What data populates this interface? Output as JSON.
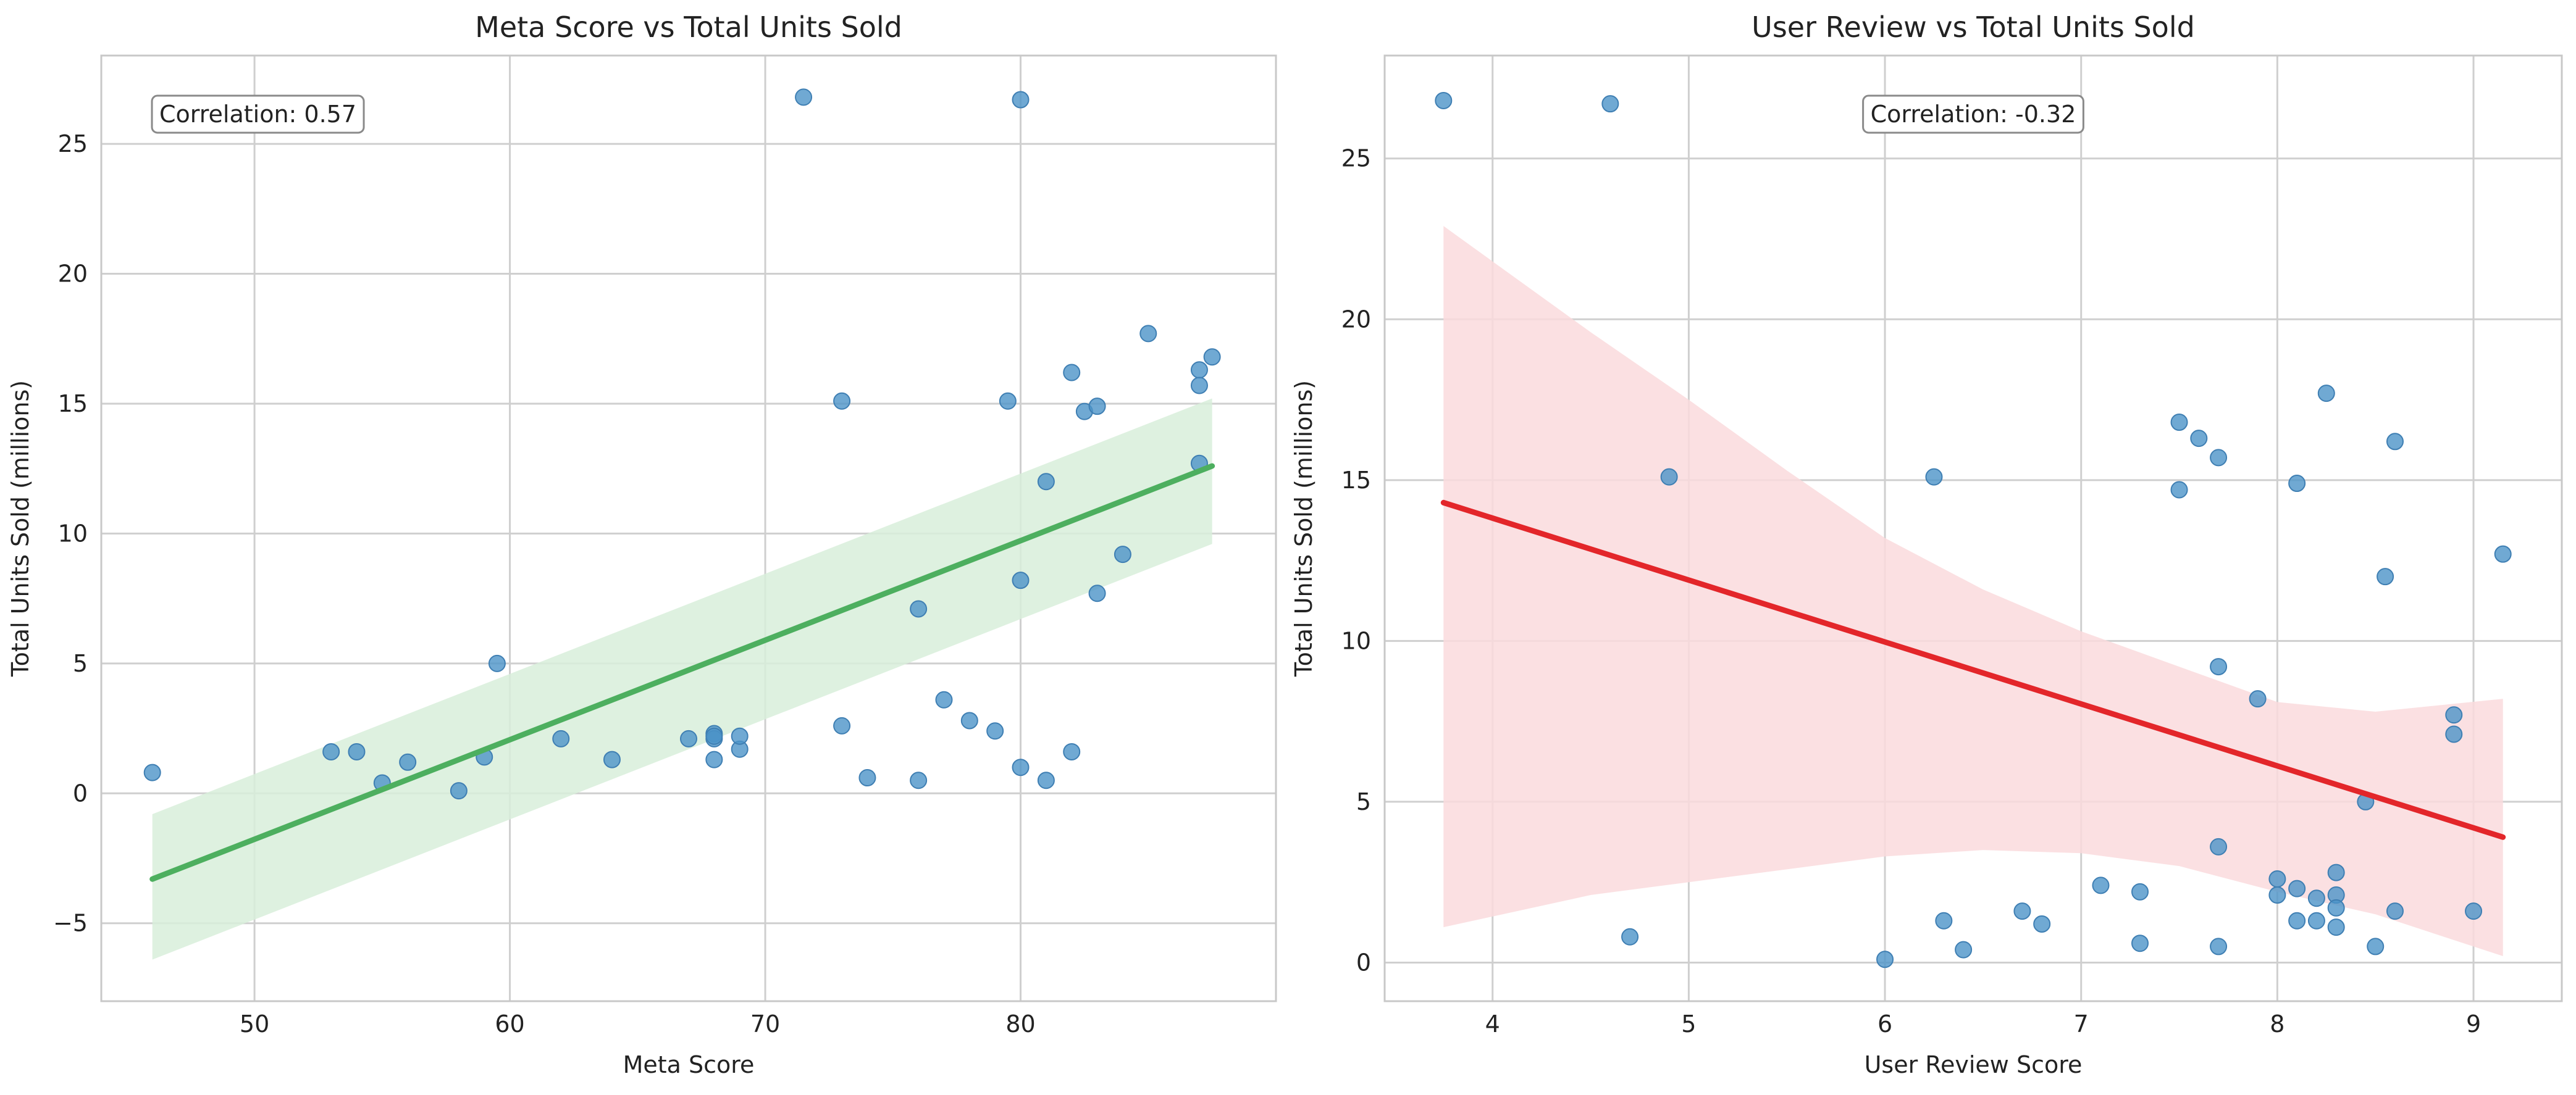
{
  "chart_data": [
    {
      "type": "scatter",
      "title": "Meta Score vs Total Units Sold",
      "xlabel": "Meta Score",
      "ylabel": "Total Units Sold (millions)",
      "xlim": [
        44,
        90
      ],
      "ylim": [
        -8,
        28.4
      ],
      "xticks": [
        50,
        60,
        70,
        80
      ],
      "yticks": [
        -5,
        0,
        5,
        10,
        15,
        20,
        25
      ],
      "grid": true,
      "annotation": "Correlation: 0.57",
      "annotation_position": "top-left",
      "point_color": "#4c94c8",
      "regression": {
        "color": "#4daf5f",
        "band_color": "#d8eedb",
        "x": [
          46,
          87.5
        ],
        "y": [
          -3.3,
          12.6
        ],
        "band_upper": [
          -0.8,
          15.2
        ],
        "band_lower": [
          -6.4,
          9.6
        ]
      },
      "points": {
        "x": [
          46,
          53,
          54,
          55,
          56,
          58,
          59,
          59.5,
          62,
          64,
          67,
          68,
          68,
          68,
          68,
          69,
          69,
          71.5,
          73,
          73,
          74,
          76,
          76,
          77,
          78,
          79,
          79.5,
          80,
          80,
          80,
          81,
          81,
          82,
          82,
          82.5,
          83,
          83,
          84,
          85,
          87,
          87,
          87,
          87.5
        ],
        "y": [
          0.8,
          1.6,
          1.6,
          0.4,
          1.2,
          0.1,
          1.4,
          5.0,
          2.1,
          1.3,
          2.1,
          2.3,
          2.1,
          1.3,
          2.2,
          1.7,
          2.2,
          26.8,
          15.1,
          2.6,
          0.6,
          7.1,
          0.5,
          3.6,
          2.8,
          2.4,
          15.1,
          26.7,
          8.2,
          1.0,
          12.0,
          0.5,
          16.2,
          1.6,
          14.7,
          14.9,
          7.7,
          9.2,
          17.7,
          16.3,
          15.7,
          12.7,
          16.8
        ]
      }
    },
    {
      "type": "scatter",
      "title": "User Review vs Total Units Sold",
      "xlabel": "User Review Score",
      "ylabel": "Total Units Sold (millions)",
      "xlim": [
        3.45,
        9.45
      ],
      "ylim": [
        -1.2,
        28.2
      ],
      "xticks": [
        4,
        5,
        6,
        7,
        8,
        9
      ],
      "yticks": [
        0,
        5,
        10,
        15,
        20,
        25
      ],
      "grid": true,
      "annotation": "Correlation: -0.32",
      "annotation_position": "top-center",
      "point_color": "#4c94c8",
      "regression": {
        "color": "#e3262a",
        "band_color": "#fadadd",
        "x": [
          3.75,
          9.15
        ],
        "y": [
          14.3,
          3.9
        ],
        "band_upper_x": [
          3.75,
          4.5,
          5.0,
          5.5,
          6.0,
          6.5,
          7.0,
          7.5,
          8.0,
          8.5,
          9.15
        ],
        "band_upper_y": [
          22.9,
          19.6,
          17.5,
          15.3,
          13.2,
          11.6,
          10.3,
          9.2,
          8.1,
          7.8,
          8.2
        ],
        "band_lower_x": [
          3.75,
          4.5,
          5.0,
          5.5,
          6.0,
          6.5,
          7.0,
          7.5,
          8.0,
          8.5,
          9.15
        ],
        "band_lower_y": [
          1.1,
          2.1,
          2.5,
          2.9,
          3.3,
          3.5,
          3.4,
          3.0,
          2.2,
          1.5,
          0.2
        ]
      },
      "points": {
        "x": [
          3.75,
          4.6,
          4.7,
          4.9,
          6.0,
          6.25,
          6.3,
          6.4,
          6.7,
          6.8,
          7.1,
          7.3,
          7.3,
          7.5,
          7.5,
          7.6,
          7.7,
          7.7,
          7.7,
          7.7,
          7.9,
          8.0,
          8.0,
          8.1,
          8.1,
          8.1,
          8.2,
          8.2,
          8.25,
          8.3,
          8.3,
          8.3,
          8.3,
          8.45,
          8.5,
          8.55,
          8.6,
          8.6,
          8.9,
          8.9,
          9.0,
          9.15
        ],
        "y": [
          26.8,
          26.7,
          0.8,
          15.1,
          0.1,
          15.1,
          1.3,
          0.4,
          1.6,
          1.2,
          2.4,
          2.2,
          0.6,
          16.8,
          14.7,
          16.3,
          15.7,
          9.2,
          3.6,
          0.5,
          8.2,
          2.6,
          2.1,
          14.9,
          2.3,
          1.3,
          2.0,
          1.3,
          17.7,
          2.8,
          2.1,
          1.7,
          1.1,
          5.0,
          0.5,
          12.0,
          16.2,
          1.6,
          7.7,
          7.1,
          1.6,
          12.7
        ]
      }
    }
  ]
}
